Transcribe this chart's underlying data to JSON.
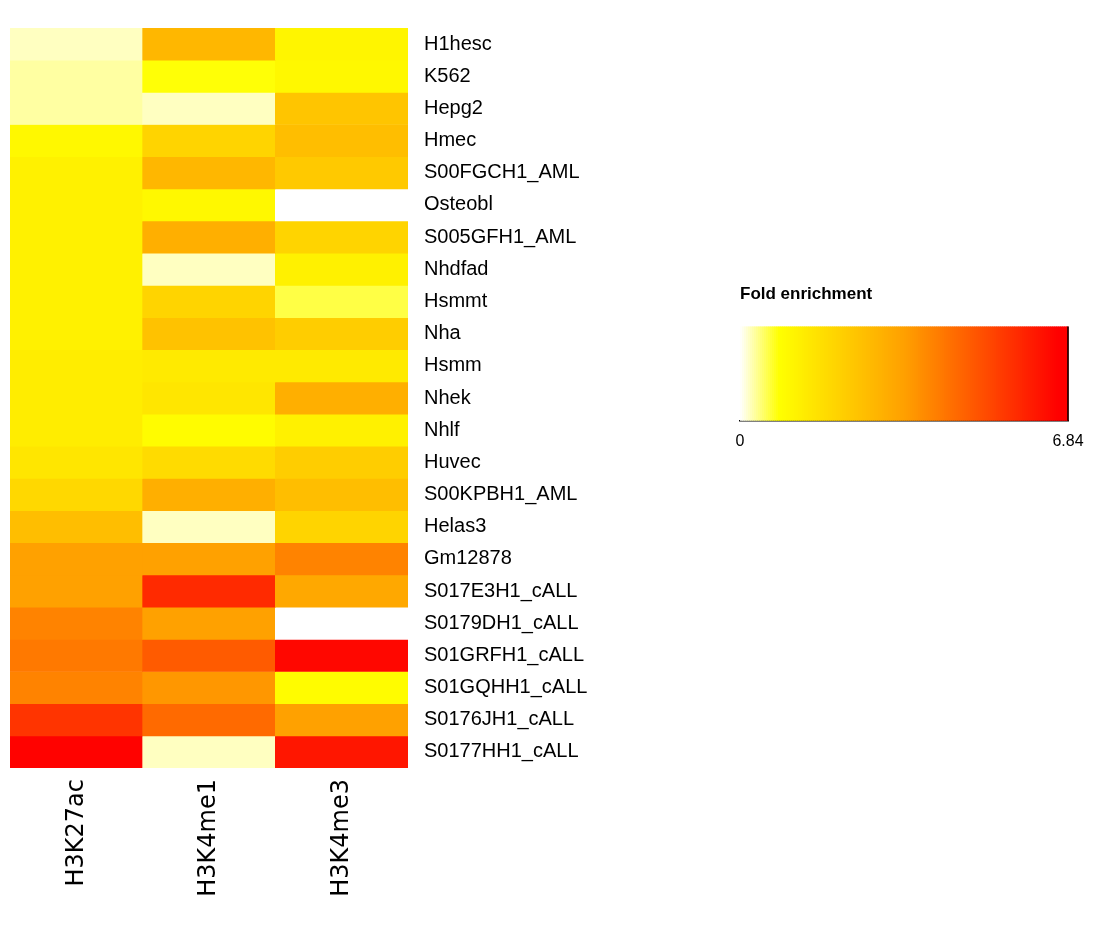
{
  "chart_data": {
    "type": "heatmap",
    "categories": [
      "H3K27ac",
      "H3K4me1",
      "H3K4me3"
    ],
    "y_categories": [
      "H1hesc",
      "K562",
      "Hepg2",
      "Hmec",
      "S00FGCH1_AML",
      "Osteobl",
      "S005GFH1_AML",
      "Nhdfad",
      "Hsmmt",
      "Nha",
      "Hsmm",
      "Nhek",
      "Nhlf",
      "Huvec",
      "S00KPBH1_AML",
      "Helas3",
      "Gm12878",
      "S017E3H1_cALL",
      "S0179DH1_cALL",
      "S01GRFH1_cALL",
      "S01GQHH1_cALL",
      "S0176JH1_cALL",
      "S0177HH1_cALL"
    ],
    "cells": [
      [
        0.2,
        2.8,
        1.1
      ],
      [
        0.3,
        0.8,
        1.0
      ],
      [
        0.3,
        0.2,
        2.4
      ],
      [
        1.0,
        2.0,
        2.6
      ],
      [
        1.2,
        2.8,
        2.3
      ],
      [
        1.2,
        1.0,
        0.0
      ],
      [
        1.2,
        3.0,
        2.0
      ],
      [
        1.2,
        0.2,
        1.2
      ],
      [
        1.2,
        2.0,
        0.6
      ],
      [
        1.2,
        2.5,
        2.2
      ],
      [
        1.3,
        1.4,
        1.4
      ],
      [
        1.3,
        1.5,
        3.0
      ],
      [
        1.3,
        0.9,
        1.2
      ],
      [
        1.5,
        1.8,
        2.2
      ],
      [
        1.9,
        3.0,
        2.6
      ],
      [
        2.6,
        0.2,
        2.0
      ],
      [
        3.4,
        3.4,
        4.0
      ],
      [
        3.4,
        5.8,
        3.2
      ],
      [
        4.0,
        3.4,
        0.0
      ],
      [
        4.2,
        4.8,
        6.5
      ],
      [
        4.0,
        3.6,
        0.9
      ],
      [
        5.6,
        4.5,
        3.4
      ],
      [
        6.6,
        0.2,
        6.2
      ]
    ],
    "clabel": "Fold enrichment",
    "clim": [
      0,
      6.84
    ],
    "cticks": [
      0,
      6.84
    ]
  }
}
